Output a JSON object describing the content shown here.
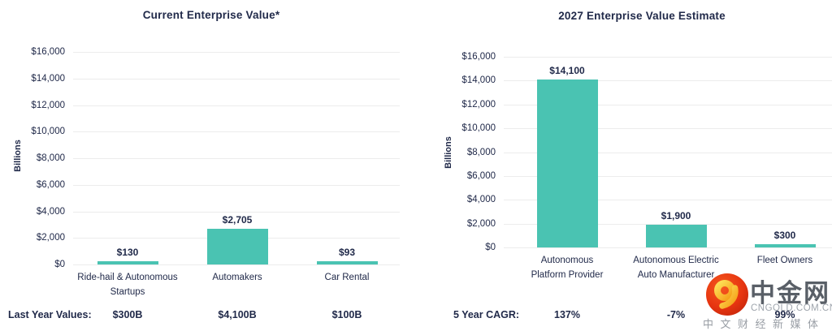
{
  "colors": {
    "bar": "#4ac3b2",
    "text": "#212a4a",
    "grid": "#ececec"
  },
  "watermark": {
    "brand": "中金网",
    "domain": "CNGOLD.COM.CN",
    "tagline": "中文财经新媒体"
  },
  "chart_data": [
    {
      "type": "bar",
      "title": "Current Enterprise Value*",
      "ylabel": "Billions",
      "xlabel": "",
      "categories": [
        "Ride-hail & Autonomous Startups",
        "Automakers",
        "Car Rental"
      ],
      "category_lines": [
        [
          "Ride-hail & Autonomous",
          "Startups"
        ],
        [
          "Automakers"
        ],
        [
          "Car Rental"
        ]
      ],
      "values": [
        130,
        2705,
        93
      ],
      "value_labels": [
        "$130",
        "$2,705",
        "$93"
      ],
      "ytick_labels": [
        "$16,000",
        "$14,000",
        "$12,000",
        "$10,000",
        "$8,000",
        "$6,000",
        "$4,000",
        "$2,000",
        "$0"
      ],
      "ylim": [
        0,
        16000
      ],
      "grid": true,
      "legend": false,
      "footer": {
        "label": "Last Year Values:",
        "values": [
          "$300B",
          "$4,100B",
          "$100B"
        ]
      }
    },
    {
      "type": "bar",
      "title": "2027 Enterprise Value Estimate",
      "ylabel": "Billions",
      "xlabel": "",
      "categories": [
        "Autonomous Platform Provider",
        "Autonomous Electric Auto Manufacturer",
        "Fleet Owners"
      ],
      "category_lines": [
        [
          "Autonomous",
          "Platform Provider"
        ],
        [
          "Autonomous Electric",
          "Auto Manufacturer"
        ],
        [
          "Fleet Owners"
        ]
      ],
      "values": [
        14100,
        1900,
        300
      ],
      "value_labels": [
        "$14,100",
        "$1,900",
        "$300"
      ],
      "ytick_labels": [
        "$16,000",
        "$14,000",
        "$12,000",
        "$10,000",
        "$8,000",
        "$6,000",
        "$4,000",
        "$2,000",
        "$0"
      ],
      "ylim": [
        0,
        16000
      ],
      "grid": true,
      "legend": false,
      "footer": {
        "label": "5 Year CAGR:",
        "values": [
          "137%",
          "-7%",
          "99%"
        ]
      }
    }
  ]
}
